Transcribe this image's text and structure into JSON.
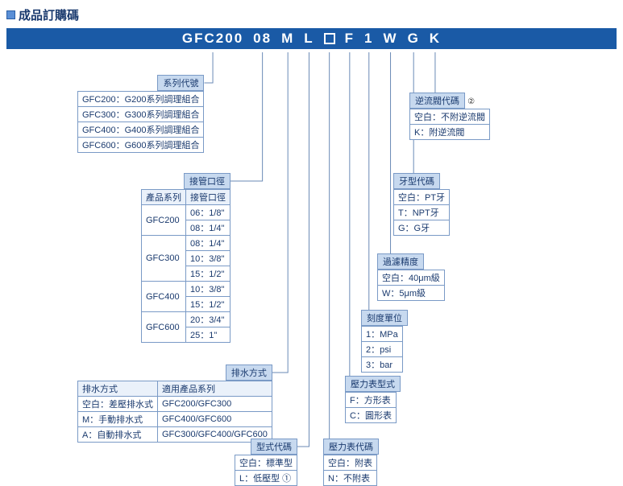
{
  "title": "成品訂購碼",
  "code_segments": [
    "GFC200",
    "08",
    "M",
    "L",
    "□",
    "F",
    "1",
    "W",
    "G",
    "K"
  ],
  "colors": {
    "bar_bg": "#1a5aa6",
    "label_bg": "#c7d9ef",
    "border": "#7a9ac6",
    "line": "#6a8ab6",
    "text": "#1a3a6e"
  },
  "blocks": {
    "series": {
      "label": "系列代號",
      "rows": [
        "GFC200：G200系列調理組合",
        "GFC300：G300系列調理組合",
        "GFC400：G400系列調理組合",
        "GFC600：G600系列調理組合"
      ]
    },
    "port": {
      "label": "接管口徑",
      "header": [
        "產品系列",
        "接管口徑"
      ],
      "groups": [
        {
          "series": "GFC200",
          "sizes": [
            "06：1/8\"",
            "08：1/4\""
          ]
        },
        {
          "series": "GFC300",
          "sizes": [
            "08：1/4\"",
            "10：3/8\"",
            "15：1/2\""
          ]
        },
        {
          "series": "GFC400",
          "sizes": [
            "10：3/8\"",
            "15：1/2\""
          ]
        },
        {
          "series": "GFC600",
          "sizes": [
            "20：3/4\"",
            "25：1\""
          ]
        }
      ]
    },
    "drain": {
      "label": "排水方式",
      "header": [
        "排水方式",
        "適用產品系列"
      ],
      "rows": [
        [
          "空白：差壓排水式",
          "GFC200/GFC300"
        ],
        [
          "M：手動排水式",
          "GFC400/GFC600"
        ],
        [
          "A：自動排水式",
          "GFC300/GFC400/GFC600"
        ]
      ]
    },
    "model": {
      "label": "型式代碼",
      "rows": [
        "空白：標準型",
        "L：低壓型 ①"
      ]
    },
    "gauge_code": {
      "label": "壓力表代碼",
      "rows": [
        "空白：附表",
        "N：不附表"
      ]
    },
    "gauge_type": {
      "label": "壓力表型式",
      "rows": [
        "F：方形表",
        "C：圓形表"
      ]
    },
    "scale": {
      "label": "刻度單位",
      "rows": [
        "1：MPa",
        "2：psi",
        "3：bar"
      ]
    },
    "filter": {
      "label": "過濾精度",
      "rows": [
        "空白：40μm級",
        "W：5μm級"
      ]
    },
    "thread": {
      "label": "牙型代碼",
      "rows": [
        "空白：PT牙",
        "T：NPT牙",
        "G：G牙"
      ]
    },
    "check": {
      "label": "逆流閥代碼",
      "note": "②",
      "rows": [
        "空白：不附逆流閥",
        "K：附逆流閥"
      ]
    }
  }
}
